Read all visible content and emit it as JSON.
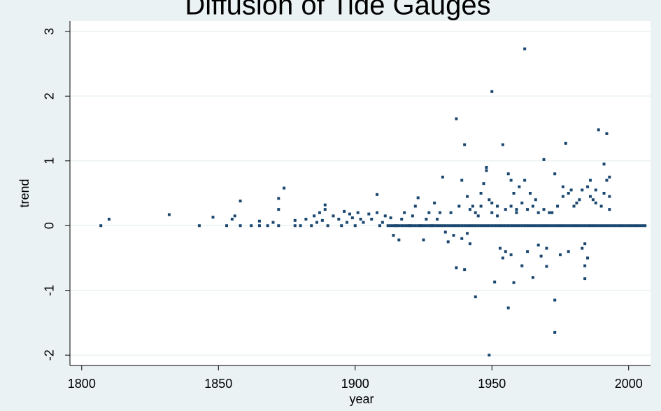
{
  "chart_data": {
    "type": "scatter",
    "title": "Diffusion of Tide Gauges",
    "xlabel": "year",
    "ylabel": "trend",
    "color": "#1a476f",
    "grid": true,
    "xlim": [
      1795.7,
      2008
    ],
    "ylim": [
      -2.16,
      3.16
    ],
    "xticks": [
      1800,
      1850,
      1900,
      1950,
      2000
    ],
    "yticks": [
      -2,
      -1,
      0,
      1,
      2,
      3
    ],
    "x": [
      1807,
      1810,
      1832,
      1843,
      1848,
      1853,
      1855,
      1856,
      1858,
      1858,
      1862,
      1865,
      1865,
      1868,
      1870,
      1872,
      1872,
      1872,
      1874,
      1878,
      1878,
      1880,
      1882,
      1884,
      1885,
      1886,
      1887,
      1888,
      1889,
      1889,
      1890,
      1892,
      1894,
      1895,
      1896,
      1897,
      1898,
      1899,
      1900,
      1901,
      1902,
      1903,
      1905,
      1906,
      1908,
      1908,
      1909,
      1910,
      1911,
      1912,
      1913,
      1914,
      1915,
      1916,
      1917,
      1918,
      1920,
      1921,
      1922,
      1923,
      1924,
      1925,
      1926,
      1927,
      1928,
      1929,
      1930,
      1931,
      1932,
      1933,
      1934,
      1935,
      1936,
      1937,
      1937,
      1938,
      1939,
      1939,
      1940,
      1940,
      1941,
      1941,
      1942,
      1942,
      1943,
      1944,
      1945,
      1946,
      1947,
      1948,
      1948,
      1949,
      1949,
      1950,
      1950,
      1951,
      1952,
      1953,
      1954,
      1954,
      1955,
      1956,
      1956,
      1957,
      1957,
      1958,
      1958,
      1959,
      1960,
      1961,
      1962,
      1962,
      1963,
      1964,
      1965,
      1966,
      1967,
      1968,
      1969,
      1970,
      1970,
      1972,
      1973,
      1973,
      1973,
      1975,
      1976,
      1977,
      1978,
      1979,
      1980,
      1982,
      1983,
      1984,
      1984,
      1984,
      1985,
      1985,
      1986,
      1987,
      1988,
      1989,
      1990,
      1991,
      1992,
      1992,
      1993,
      1993,
      1993,
      1944,
      1946,
      1950,
      1952,
      1955,
      1957,
      1959,
      1961,
      1963,
      1965,
      1967,
      1969,
      1971,
      1974,
      1976,
      1978,
      1981,
      1983,
      1986,
      1988,
      1991,
      1913,
      1914,
      1915,
      1916,
      1917,
      1918,
      1919,
      1920,
      1921,
      1922,
      1923,
      1924,
      1925,
      1926,
      1927,
      1928,
      1929,
      1930,
      1931,
      1932,
      1933,
      1934,
      1935,
      1936,
      1937,
      1938,
      1939,
      1940,
      1941,
      1942,
      1943,
      1944,
      1945,
      1946,
      1947,
      1948,
      1949,
      1950,
      1951,
      1952,
      1953,
      1954,
      1955,
      1956,
      1957,
      1958,
      1959,
      1960,
      1961,
      1962,
      1963,
      1964,
      1965,
      1966,
      1967,
      1968,
      1969,
      1970,
      1971,
      1972,
      1973,
      1974,
      1975,
      1976,
      1977,
      1978,
      1979,
      1980,
      1981,
      1982,
      1983,
      1984,
      1985,
      1986,
      1987,
      1988,
      1989,
      1990,
      1991,
      1992,
      1993,
      1994,
      1995,
      1996,
      1997,
      1998,
      1999,
      2000,
      2001,
      2002,
      2003,
      2004,
      2005,
      2006
    ],
    "values": [
      0,
      0.1,
      0.17,
      0,
      0.13,
      0,
      0.1,
      0.15,
      0.38,
      0,
      0,
      0.07,
      0,
      0,
      0.05,
      0.42,
      0.25,
      0,
      0.58,
      0,
      0.08,
      0,
      0.1,
      0,
      0.15,
      0.05,
      0.2,
      0.08,
      0.32,
      0.25,
      0,
      0.15,
      0.1,
      0,
      0.22,
      0.05,
      0.18,
      0.12,
      0,
      0.2,
      0.1,
      0.05,
      0.18,
      0.1,
      0.48,
      0.2,
      0,
      0.05,
      0.15,
      0,
      0.12,
      -0.15,
      0,
      -0.22,
      0.1,
      0.2,
      0,
      0.15,
      0.3,
      0.43,
      0,
      -0.22,
      0.1,
      0.2,
      0,
      0.35,
      0.1,
      0.2,
      0.75,
      -0.1,
      -0.25,
      0.2,
      -0.15,
      1.65,
      -0.65,
      0.3,
      -0.2,
      0.7,
      1.25,
      -0.68,
      0.45,
      -0.12,
      -0.28,
      0.25,
      0.3,
      -1.1,
      0.15,
      0.5,
      0.65,
      0.85,
      0.9,
      -2.0,
      0.4,
      2.07,
      0.2,
      -0.87,
      0.3,
      -0.35,
      1.25,
      -0.5,
      -0.4,
      -1.27,
      0.8,
      0.7,
      -0.45,
      -0.88,
      0.5,
      0.25,
      0.6,
      -0.62,
      2.73,
      0.7,
      -0.4,
      0.5,
      -0.8,
      0.4,
      -0.3,
      -0.47,
      1.02,
      -0.63,
      -0.35,
      0.2,
      -1.15,
      -1.65,
      0.8,
      -0.45,
      0.6,
      1.27,
      -0.4,
      0.55,
      0.3,
      0.4,
      -0.35,
      -0.28,
      -0.62,
      -0.82,
      -0.5,
      0.6,
      0.7,
      0.4,
      0.55,
      1.48,
      0.3,
      0.95,
      1.42,
      0.7,
      0.75,
      0.45,
      0.25,
      0.2,
      0.3,
      0.35,
      0.15,
      0.25,
      0.3,
      0.2,
      0.35,
      0.25,
      0.3,
      0.2,
      0.25,
      0.2,
      0.3,
      0.45,
      0.5,
      0.35,
      0.55,
      0.45,
      0.35,
      0.5,
      0,
      0,
      0,
      0,
      0,
      0,
      0,
      0,
      0,
      0,
      0,
      0,
      0,
      0,
      0,
      0,
      0,
      0,
      0,
      0,
      0,
      0,
      0,
      0,
      0,
      0,
      0,
      0,
      0,
      0,
      0,
      0,
      0,
      0,
      0,
      0,
      0,
      0,
      0,
      0,
      0,
      0,
      0,
      0,
      0,
      0,
      0,
      0,
      0,
      0,
      0,
      0,
      0,
      0,
      0,
      0,
      0,
      0,
      0,
      0,
      0,
      0,
      0,
      0,
      0,
      0,
      0,
      0,
      0,
      0,
      0,
      0,
      0,
      0,
      0,
      0,
      0,
      0,
      0,
      0,
      0,
      0,
      0,
      0,
      0,
      0,
      0,
      0,
      0,
      0,
      0,
      0,
      0,
      0
    ]
  }
}
